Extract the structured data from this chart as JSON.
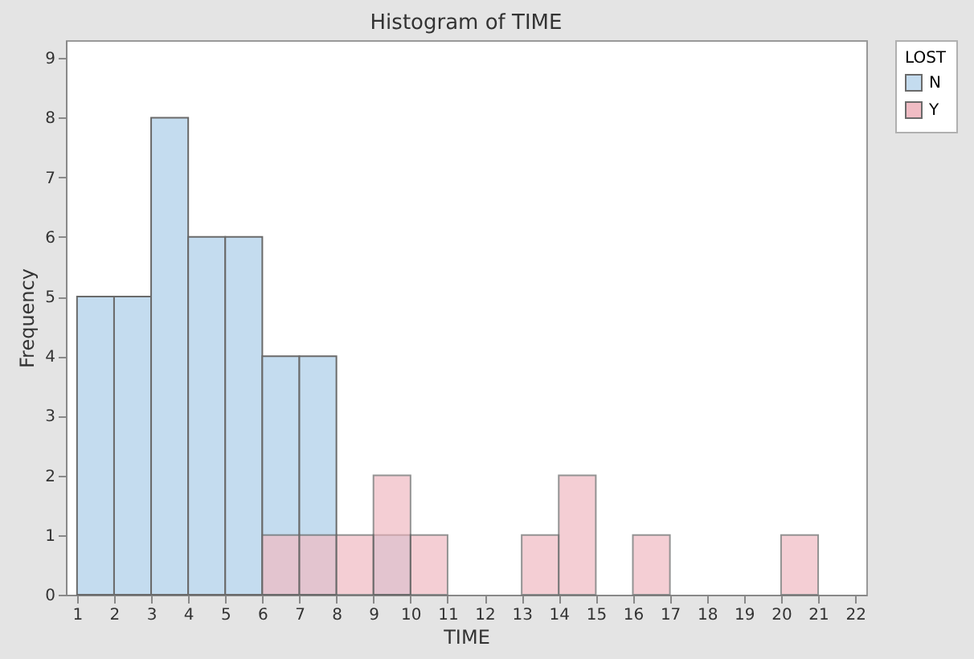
{
  "chart_data": {
    "type": "histogram",
    "title": "Histogram of TIME",
    "xlabel": "TIME",
    "ylabel": "Frequency",
    "legend_title": "LOST",
    "bins": [
      1,
      2,
      3,
      4,
      5,
      6,
      7,
      8,
      9,
      10,
      11,
      12,
      13,
      14,
      15,
      16,
      17,
      18,
      19,
      20,
      21,
      22
    ],
    "series": [
      {
        "name": "N",
        "color": "#c4dcef",
        "values": [
          5,
          5,
          8,
          6,
          6,
          4,
          4,
          0,
          1,
          0,
          0,
          0,
          0,
          0,
          0,
          0,
          0,
          0,
          0,
          0,
          0
        ]
      },
      {
        "name": "Y",
        "color": "#f0bcc4",
        "values": [
          0,
          0,
          0,
          0,
          0,
          1,
          1,
          1,
          2,
          1,
          0,
          0,
          1,
          2,
          0,
          1,
          0,
          0,
          0,
          1,
          0
        ]
      }
    ],
    "xlim": [
      0.7,
      22.3
    ],
    "ylim": [
      0,
      9.3
    ],
    "xticks": [
      1,
      2,
      3,
      4,
      5,
      6,
      7,
      8,
      9,
      10,
      11,
      12,
      13,
      14,
      15,
      16,
      17,
      18,
      19,
      20,
      21,
      22
    ],
    "yticks": [
      0,
      1,
      2,
      3,
      4,
      5,
      6,
      7,
      8,
      9
    ],
    "grid": false,
    "legend": "top right"
  }
}
